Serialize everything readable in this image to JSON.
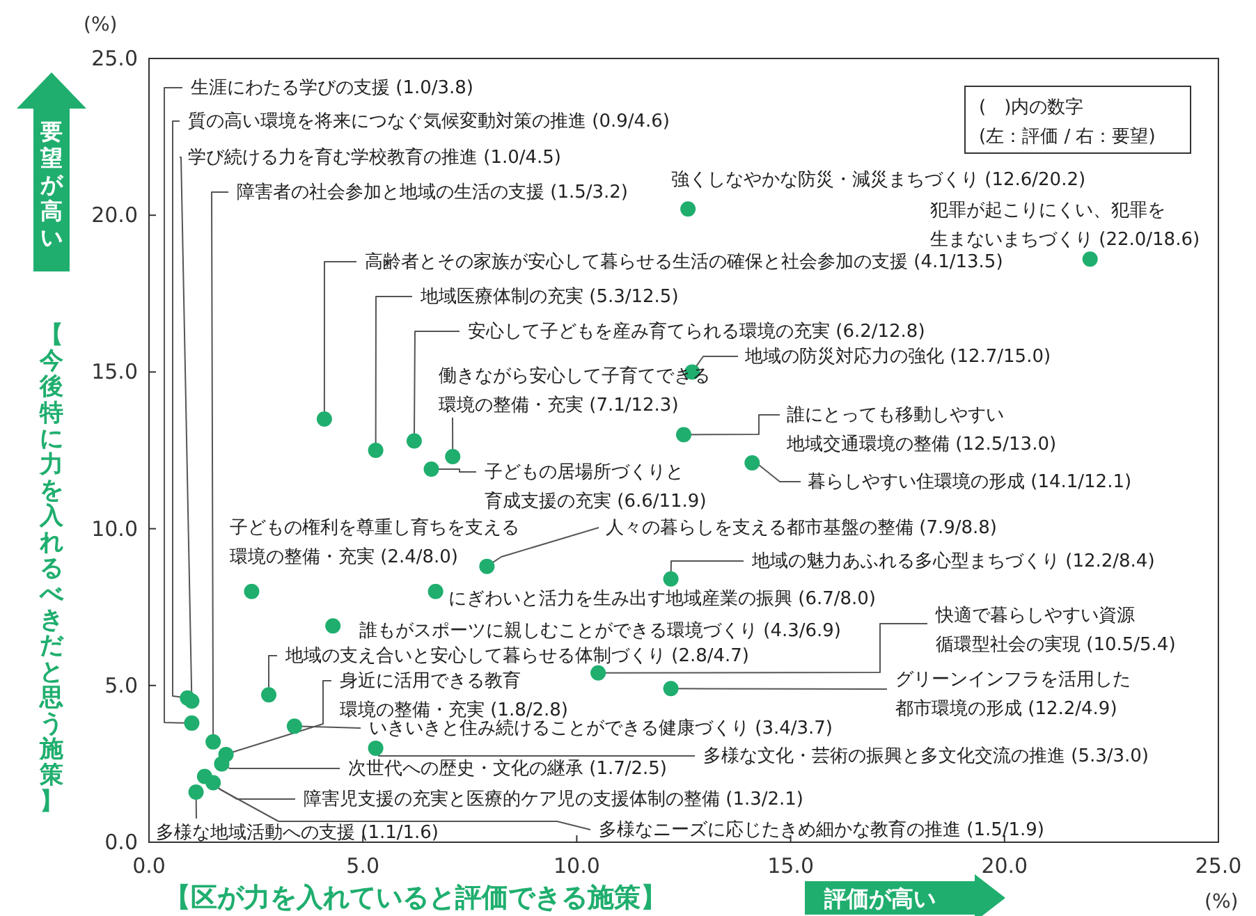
{
  "chart_data": {
    "type": "scatter",
    "xlabel": "【区が力を入れていると評価できる施策】",
    "ylabel": "【今後特に力を入れるべきだと思う施策】",
    "xlim": [
      0,
      25
    ],
    "ylim": [
      0,
      25
    ],
    "xticks": [
      {
        "value": 0,
        "label": "0.0"
      },
      {
        "value": 5,
        "label": "5.0"
      },
      {
        "value": 10,
        "label": "10.0"
      },
      {
        "value": 15,
        "label": "15.0"
      },
      {
        "value": 20,
        "label": "20.0"
      },
      {
        "value": 25,
        "label": "25.0"
      }
    ],
    "yticks": [
      {
        "value": 0,
        "label": "0.0"
      },
      {
        "value": 5,
        "label": "5.0"
      },
      {
        "value": 10,
        "label": "10.0"
      },
      {
        "value": 15,
        "label": "15.0"
      },
      {
        "value": 20,
        "label": "20.0"
      },
      {
        "value": 25,
        "label": "25.0"
      }
    ],
    "marker": "circle",
    "series": [
      {
        "color": "#1fae6e",
        "x": [
          1.0,
          0.9,
          1.0,
          1.5,
          12.6,
          22.0,
          4.1,
          5.3,
          6.2,
          12.7,
          7.1,
          12.5,
          6.6,
          14.1,
          2.4,
          7.9,
          12.2,
          6.7,
          4.3,
          10.5,
          2.8,
          12.2,
          1.8,
          3.4,
          5.3,
          1.7,
          1.3,
          1.5,
          1.1
        ],
        "values": [
          3.8,
          4.6,
          4.5,
          3.2,
          20.2,
          18.6,
          13.5,
          12.5,
          12.8,
          15.0,
          12.3,
          13.0,
          11.9,
          12.1,
          8.0,
          8.8,
          8.4,
          8.0,
          6.9,
          5.4,
          4.7,
          4.9,
          2.8,
          3.7,
          3.0,
          2.5,
          2.1,
          1.9,
          1.6
        ]
      }
    ],
    "annotations": [
      {
        "text": "生涯にわたる学びの支援 (1.0/3.8)",
        "x": 1.0,
        "y": 3.8
      },
      {
        "text": "質の高い環境を将来につなぐ気候変動対策の推進 (0.9/4.6)",
        "x": 0.9,
        "y": 4.6
      },
      {
        "text": "学び続ける力を育む学校教育の推進 (1.0/4.5)",
        "x": 1.0,
        "y": 4.5
      },
      {
        "text": "障害者の社会参加と地域の生活の支援 (1.5/3.2)",
        "x": 1.5,
        "y": 3.2
      },
      {
        "text": "強くしなやかな防災・減災まちづくり (12.6/20.2)",
        "x": 12.6,
        "y": 20.2
      },
      {
        "text": "犯罪が起こりにくい、犯罪を生まないまちづくり (22.0/18.6)",
        "x": 22.0,
        "y": 18.6
      },
      {
        "text": "高齢者とその家族が安心して暮らせる生活の確保と社会参加の支援 (4.1/13.5)",
        "x": 4.1,
        "y": 13.5
      },
      {
        "text": "地域医療体制の充実 (5.3/12.5)",
        "x": 5.3,
        "y": 12.5
      },
      {
        "text": "安心して子どもを産み育てられる環境の充実 (6.2/12.8)",
        "x": 6.2,
        "y": 12.8
      },
      {
        "text": "地域の防災対応力の強化 (12.7/15.0)",
        "x": 12.7,
        "y": 15.0
      },
      {
        "text": "働きながら安心して子育てできる環境の整備・充実 (7.1/12.3)",
        "x": 7.1,
        "y": 12.3
      },
      {
        "text": "誰にとっても移動しやすい地域交通環境の整備 (12.5/13.0)",
        "x": 12.5,
        "y": 13.0
      },
      {
        "text": "子どもの居場所づくりと育成支援の充実 (6.6/11.9)",
        "x": 6.6,
        "y": 11.9
      },
      {
        "text": "暮らしやすい住環境の形成 (14.1/12.1)",
        "x": 14.1,
        "y": 12.1
      },
      {
        "text": "子どもの権利を尊重し育ちを支える環境の整備・充実 (2.4/8.0)",
        "x": 2.4,
        "y": 8.0
      },
      {
        "text": "人々の暮らしを支える都市基盤の整備 (7.9/8.8)",
        "x": 7.9,
        "y": 8.8
      },
      {
        "text": "地域の魅力あふれる多心型まちづくり (12.2/8.4)",
        "x": 12.2,
        "y": 8.4
      },
      {
        "text": "にぎわいと活力を生み出す地域産業の振興 (6.7/8.0)",
        "x": 6.7,
        "y": 8.0
      },
      {
        "text": "誰もがスポーツに親しむことができる環境づくり (4.3/6.9)",
        "x": 4.3,
        "y": 6.9
      },
      {
        "text": "快適で暮らしやすい資源循環型社会の実現 (10.5/5.4)",
        "x": 10.5,
        "y": 5.4
      },
      {
        "text": "地域の支え合いと安心して暮らせる体制づくり (2.8/4.7)",
        "x": 2.8,
        "y": 4.7
      },
      {
        "text": "グリーンインフラを活用した都市環境の形成 (12.2/4.9)",
        "x": 12.2,
        "y": 4.9
      },
      {
        "text": "身近に活用できる教育環境の整備・充実 (1.8/2.8)",
        "x": 1.8,
        "y": 2.8
      },
      {
        "text": "いきいきと住み続けることができる健康づくり (3.4/3.7)",
        "x": 3.4,
        "y": 3.7
      },
      {
        "text": "多様な文化・芸術の振興と多文化交流の推進 (5.3/3.0)",
        "x": 5.3,
        "y": 3.0
      },
      {
        "text": "次世代への歴史・文化の継承 (1.7/2.5)",
        "x": 1.7,
        "y": 2.5
      },
      {
        "text": "障害児支援の充実と医療的ケア児の支援体制の整備 (1.3/2.1)",
        "x": 1.3,
        "y": 2.1
      },
      {
        "text": "多様なニーズに応じたきめ細かな教育の推進 (1.5/1.9)",
        "x": 1.5,
        "y": 1.9
      },
      {
        "text": "多様な地域活動への支援 (1.1/1.6)",
        "x": 1.1,
        "y": 1.6
      },
      "(　)内の数字\n(左：評価 / 右：要望)",
      "評価が高い",
      "要望が高い",
      "(%)",
      "(%)"
    ]
  }
}
